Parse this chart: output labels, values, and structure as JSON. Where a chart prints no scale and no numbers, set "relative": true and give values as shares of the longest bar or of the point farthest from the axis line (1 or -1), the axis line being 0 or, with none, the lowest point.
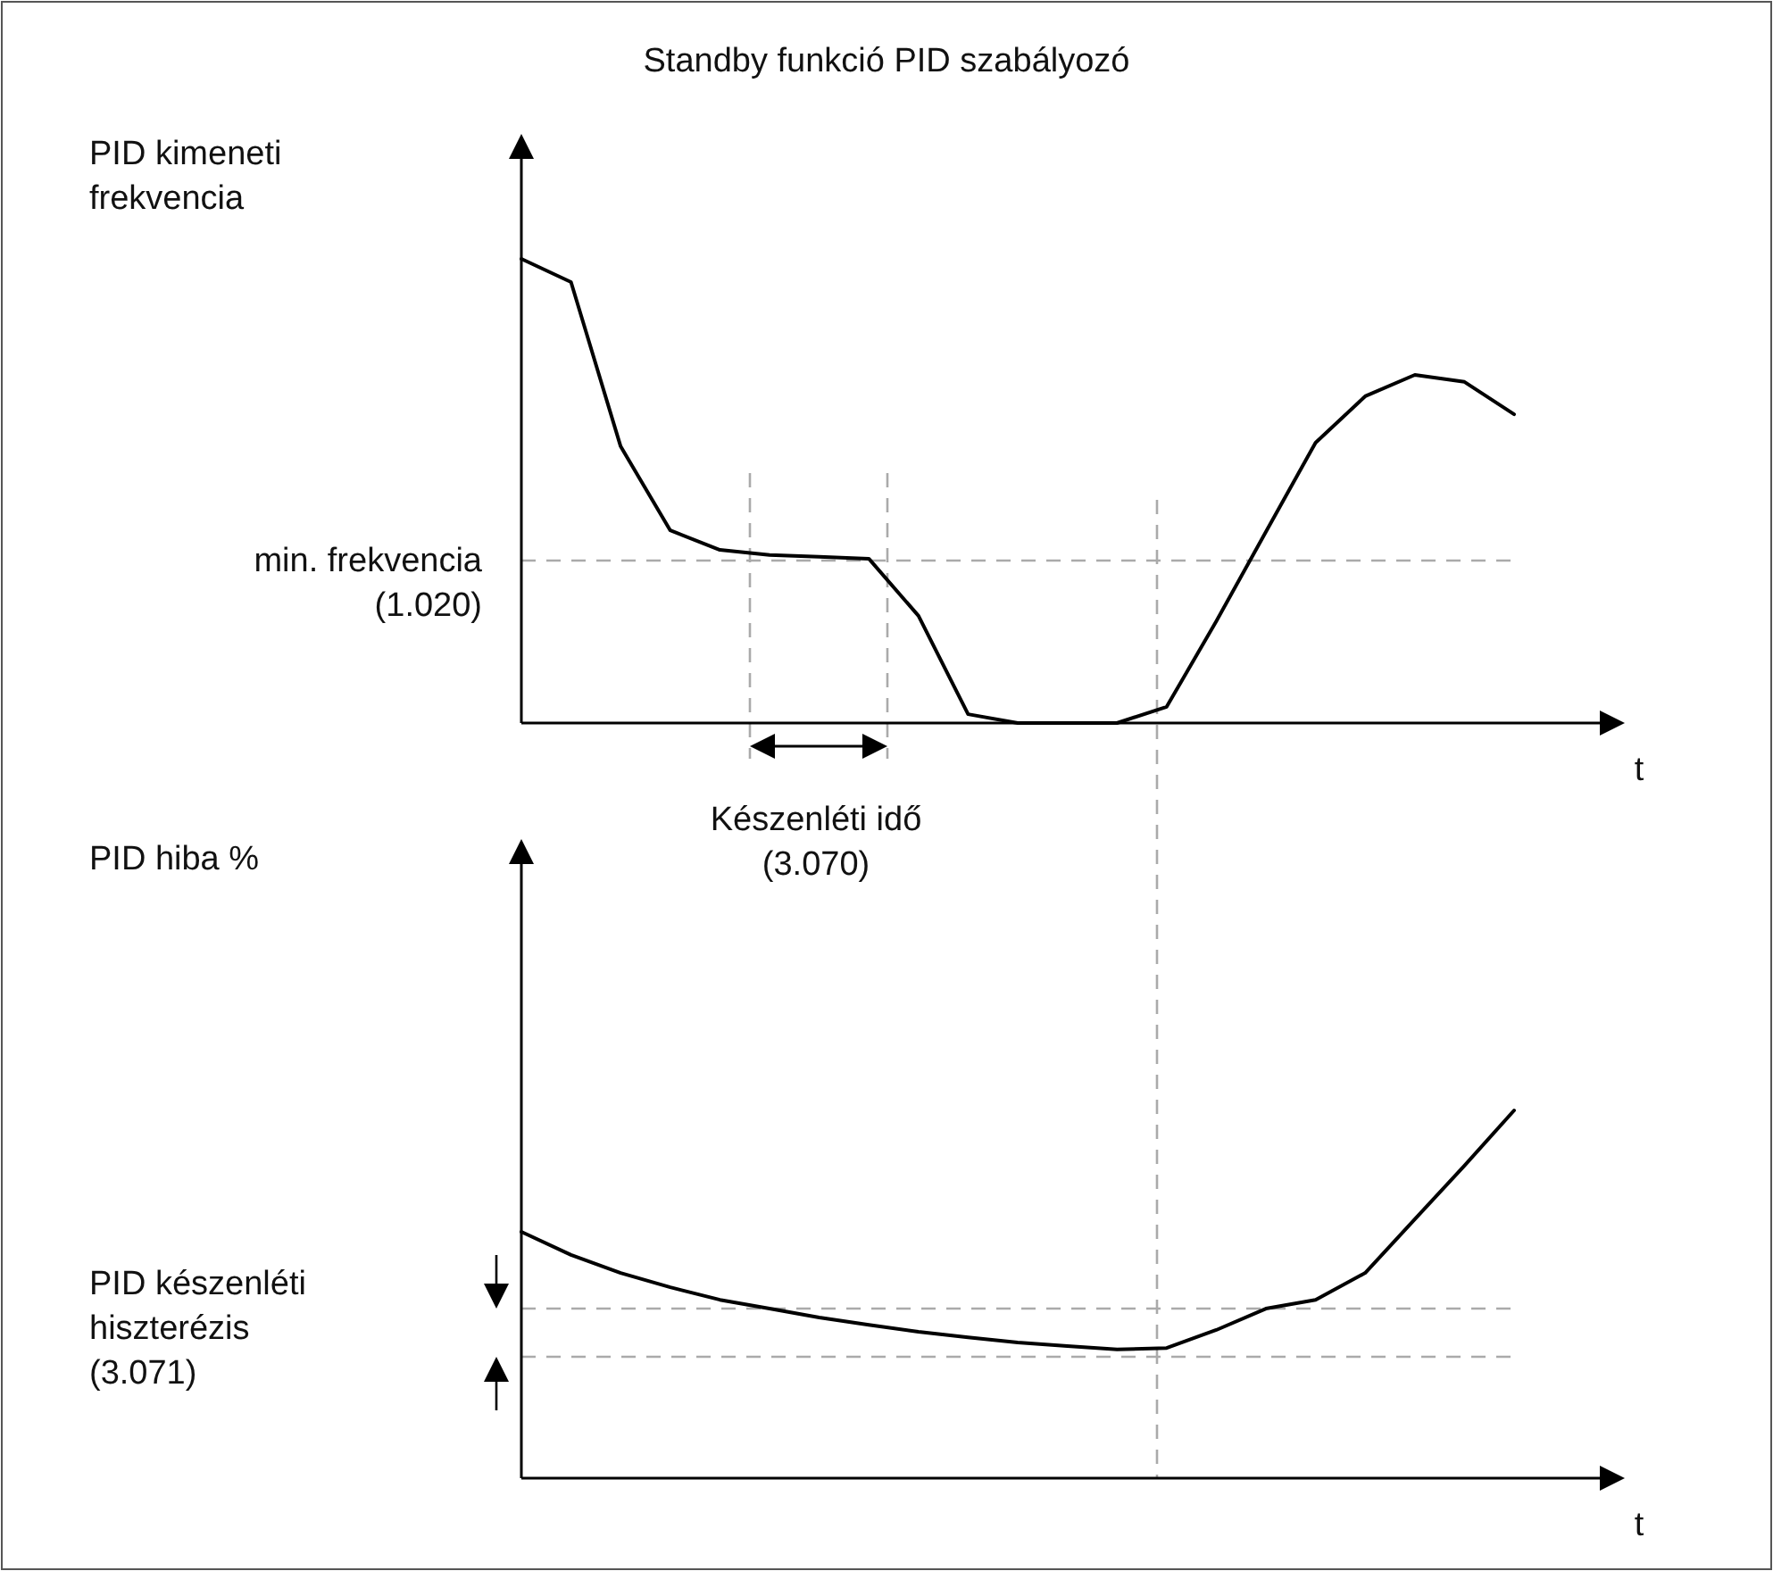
{
  "chart_data": [
    {
      "type": "line",
      "title": "Standby funkció PID szabályozó",
      "ylabel": "PID kimeneti frekvencia",
      "xlabel": "t",
      "relative": true,
      "categories": [
        null,
        null,
        null,
        null,
        null,
        null,
        null,
        null,
        null,
        null,
        null,
        null,
        null,
        null,
        null,
        null,
        null,
        null,
        null,
        null,
        null
      ],
      "series": [
        {
          "color": "#000000",
          "values": [
            1.0,
            0.95,
            0.596,
            0.415,
            0.373,
            0.362,
            0.358,
            0.354,
            0.231,
            0.019,
            0,
            0,
            0,
            0.035,
            0.219,
            0.412,
            0.604,
            0.704,
            0.75,
            0.735,
            0.665
          ]
        }
      ],
      "ref_lines": [
        {
          "axis": "y",
          "value": 0.35,
          "label": "min. frekvencia (1.020)",
          "color": "#aaaaaa",
          "line_style": "dashed"
        }
      ],
      "annotations": [
        "Készenléti idő (3.070)"
      ],
      "marker": "none",
      "line_style": "solid"
    },
    {
      "type": "line",
      "ylabel": "PID hiba %",
      "xlabel": "t",
      "relative": true,
      "categories": [
        null,
        null,
        null,
        null,
        null,
        null,
        null,
        null,
        null,
        null,
        null,
        null,
        null,
        null,
        null,
        null,
        null,
        null,
        null,
        null,
        null
      ],
      "series": [
        {
          "color": "#000000",
          "values": [
            0.67,
            0.607,
            0.558,
            0.519,
            0.485,
            0.461,
            0.437,
            0.417,
            0.398,
            0.383,
            0.369,
            0.359,
            0.35,
            0.354,
            0.403,
            0.461,
            0.485,
            0.558,
            0.704,
            0.85,
            1.0
          ]
        }
      ],
      "ref_lines": [
        {
          "axis": "y",
          "value": 0.461,
          "label": null,
          "color": "#aaaaaa",
          "line_style": "dashed"
        },
        {
          "axis": "y",
          "value": 0.33,
          "label": null,
          "color": "#aaaaaa",
          "line_style": "dashed"
        }
      ],
      "annotations": [
        "PID készenléti hiszterézis (3.071)"
      ],
      "marker": "none",
      "line_style": "solid"
    }
  ]
}
